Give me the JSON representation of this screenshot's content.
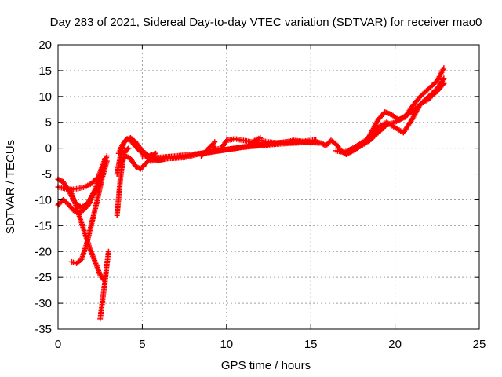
{
  "chart_data": {
    "type": "scatter",
    "title": "Day 283 of 2021, Sidereal Day-to-day VTEC variation (SDTVAR) for receiver mao0",
    "xlabel": "GPS time / hours",
    "ylabel": "SDTVAR / TECUs",
    "xlim": [
      0,
      25
    ],
    "ylim": [
      -35,
      20
    ],
    "xticks": [
      0,
      5,
      10,
      15,
      20,
      25
    ],
    "yticks": [
      -35,
      -30,
      -25,
      -20,
      -15,
      -10,
      -5,
      0,
      5,
      10,
      15,
      20
    ],
    "grid": true,
    "legend": "none",
    "marker": "plus",
    "color": "#ff0000",
    "series": [
      {
        "x": [
          0.0,
          0.4,
          0.8,
          1.2,
          1.6,
          2.0,
          2.4,
          2.8
        ],
        "y": [
          -7.5,
          -7.8,
          -8.0,
          -7.8,
          -7.5,
          -6.8,
          -5.5,
          -2.0
        ]
      },
      {
        "x": [
          0.0,
          0.3,
          0.6,
          1.0,
          1.4,
          1.8,
          2.2,
          2.6,
          2.9
        ],
        "y": [
          -6.0,
          -6.5,
          -8.0,
          -10.5,
          -11.5,
          -10.5,
          -8.0,
          -4.5,
          -1.5
        ]
      },
      {
        "x": [
          0.0,
          0.3,
          0.6,
          0.9,
          1.2,
          1.5,
          1.8,
          2.1,
          2.5
        ],
        "y": [
          -11.0,
          -10.0,
          -10.8,
          -12.0,
          -12.5,
          -12.0,
          -11.0,
          -9.0,
          -7.0
        ]
      },
      {
        "x": [
          0.7,
          1.0,
          1.3,
          1.6,
          1.9,
          2.2,
          2.5,
          2.7
        ],
        "y": [
          -8.0,
          -10.5,
          -13.5,
          -16.5,
          -19.5,
          -22.0,
          -24.5,
          -25.5
        ]
      },
      {
        "x": [
          0.8,
          1.1,
          1.4,
          1.7,
          2.0,
          2.3,
          2.6,
          2.9
        ],
        "y": [
          -22.0,
          -22.3,
          -21.5,
          -18.5,
          -14.5,
          -10.5,
          -6.0,
          -2.5
        ]
      },
      {
        "x": [
          2.5,
          2.6,
          2.7,
          2.8,
          2.9,
          3.0
        ],
        "y": [
          -33.0,
          -30.5,
          -28.0,
          -25.5,
          -22.5,
          -20.0
        ]
      },
      {
        "x": [
          3.5,
          3.6,
          3.7,
          3.8,
          3.9,
          4.0,
          4.2
        ],
        "y": [
          -13.0,
          -9.5,
          -6.0,
          -3.5,
          -1.5,
          -0.5,
          0.0
        ]
      },
      {
        "x": [
          3.5,
          3.7,
          3.9,
          4.1,
          4.3,
          4.6,
          5.0,
          5.5,
          6.0,
          6.5
        ],
        "y": [
          -5.0,
          -1.5,
          1.0,
          1.8,
          1.5,
          0.3,
          -1.0,
          -2.0,
          -2.3,
          -2.0
        ]
      },
      {
        "x": [
          3.6,
          3.8,
          4.0,
          4.3,
          4.6,
          5.0,
          5.4,
          5.8
        ],
        "y": [
          -1.0,
          0.5,
          1.5,
          2.0,
          1.2,
          -0.5,
          -1.5,
          -1.0
        ]
      },
      {
        "x": [
          3.7,
          4.0,
          4.3,
          4.6,
          4.9,
          5.2,
          5.5
        ],
        "y": [
          -3.0,
          -1.5,
          -2.0,
          -3.5,
          -4.0,
          -3.0,
          -2.0
        ]
      },
      {
        "x": [
          5.0,
          6.0,
          7.0,
          8.0,
          9.0,
          10.0,
          11.0,
          12.0,
          13.0,
          14.0,
          15.0
        ],
        "y": [
          -1.5,
          -1.8,
          -1.5,
          -1.2,
          -0.8,
          -0.3,
          0.2,
          0.5,
          0.8,
          1.0,
          1.2
        ]
      },
      {
        "x": [
          5.5,
          6.5,
          7.5,
          8.5,
          9.5,
          10.5,
          11.5,
          12.5,
          13.5,
          14.5,
          15.5
        ],
        "y": [
          -2.5,
          -2.0,
          -1.8,
          -1.0,
          -0.5,
          0.0,
          0.5,
          0.8,
          1.2,
          1.3,
          1.0
        ]
      },
      {
        "x": [
          8.5,
          8.8,
          9.1,
          9.4,
          9.7,
          10.0,
          10.5,
          11.0,
          11.5,
          12.0
        ],
        "y": [
          -1.5,
          -0.5,
          0.5,
          -0.2,
          0.0,
          1.5,
          1.8,
          1.5,
          1.2,
          2.0
        ]
      },
      {
        "x": [
          9.0,
          9.3
        ],
        "y": [
          0.0,
          1.2
        ]
      },
      {
        "x": [
          11.5,
          12.0,
          12.5,
          13.0,
          13.5,
          14.0,
          14.5,
          15.0,
          15.3
        ],
        "y": [
          1.0,
          1.5,
          1.2,
          1.0,
          1.2,
          1.5,
          1.3,
          1.5,
          1.6
        ]
      },
      {
        "x": [
          15.0,
          15.3,
          15.6,
          15.9,
          16.2,
          16.5,
          16.8,
          17.1,
          17.5,
          18.0,
          18.5,
          19.0,
          19.4,
          19.8,
          20.2,
          20.6,
          21.0,
          21.5,
          22.0,
          22.5,
          22.9
        ],
        "y": [
          1.0,
          1.2,
          1.0,
          0.5,
          1.5,
          0.8,
          -0.5,
          -1.2,
          -0.5,
          0.5,
          2.5,
          5.5,
          7.0,
          6.5,
          5.5,
          6.0,
          8.0,
          10.0,
          11.5,
          13.0,
          15.5
        ]
      },
      {
        "x": [
          16.5,
          17.0,
          17.5,
          18.0,
          18.5,
          19.0,
          19.5,
          20.0,
          20.5,
          21.0,
          21.5,
          22.0,
          22.5,
          22.9
        ],
        "y": [
          -0.5,
          -0.8,
          0.0,
          1.0,
          2.0,
          4.0,
          5.0,
          4.0,
          3.0,
          5.5,
          8.5,
          10.0,
          11.5,
          13.5
        ]
      },
      {
        "x": [
          17.0,
          17.5,
          18.0,
          18.5,
          19.0,
          19.5,
          20.0,
          20.5,
          21.0,
          21.5,
          22.0,
          22.5,
          22.9
        ],
        "y": [
          -1.0,
          -0.5,
          0.5,
          1.5,
          3.0,
          4.5,
          5.0,
          6.0,
          7.0,
          8.5,
          9.5,
          11.0,
          12.5
        ]
      }
    ]
  }
}
